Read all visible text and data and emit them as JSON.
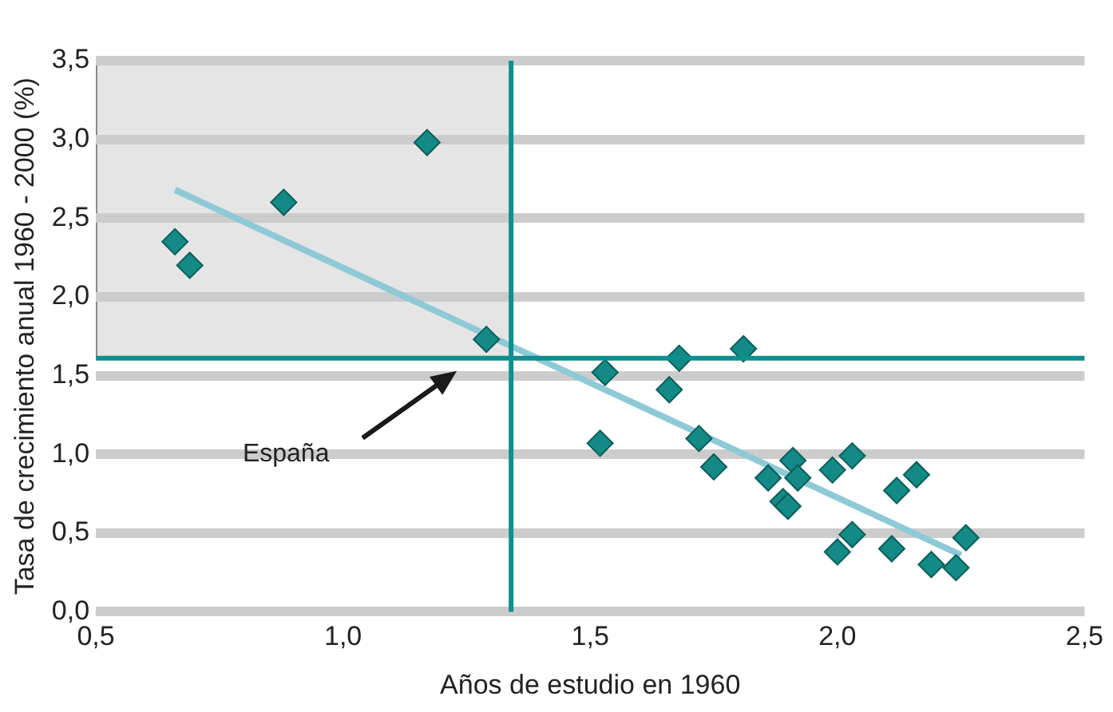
{
  "chart_data": {
    "type": "scatter",
    "xlabel": "Años de estudio en 1960",
    "ylabel": "Tasa de crecimiento anual 1960 - 2000 (%)",
    "xlim": [
      0.5,
      2.5
    ],
    "ylim": [
      0,
      3.5
    ],
    "xticks": [
      {
        "value": 0.5,
        "label": "0,5"
      },
      {
        "value": 1.0,
        "label": "1,0"
      },
      {
        "value": 1.5,
        "label": "1,5"
      },
      {
        "value": 2.0,
        "label": "2,0"
      },
      {
        "value": 2.5,
        "label": "2,5"
      }
    ],
    "yticks": [
      {
        "value": 0,
        "label": "0,0"
      },
      {
        "value": 0.5,
        "label": "0,5"
      },
      {
        "value": 1.0,
        "label": "1,0"
      },
      {
        "value": 1.5,
        "label": "1,5"
      },
      {
        "value": 2.0,
        "label": "2,0"
      },
      {
        "value": 2.5,
        "label": "2,5"
      },
      {
        "value": 3.0,
        "label": "3,0"
      },
      {
        "value": 3.5,
        "label": "3,5"
      }
    ],
    "grid": "y",
    "legend": false,
    "marker": "diamond",
    "series": [
      {
        "type": "scatter",
        "color": "#138a85",
        "x": [
          0.66,
          0.69,
          0.88,
          1.17,
          1.29,
          1.53,
          1.52,
          1.68,
          1.66,
          1.81,
          1.72,
          1.75,
          1.86,
          1.91,
          1.92,
          1.89,
          1.9,
          1.99,
          2.03,
          2.12,
          2.16,
          2.03,
          2.0,
          2.11,
          2.19,
          2.26,
          2.24
        ],
        "values": [
          2.35,
          2.2,
          2.6,
          2.98,
          1.73,
          1.52,
          1.07,
          1.61,
          1.41,
          1.67,
          1.1,
          0.92,
          0.85,
          0.96,
          0.85,
          0.7,
          0.67,
          0.9,
          0.99,
          0.77,
          0.87,
          0.49,
          0.38,
          0.4,
          0.3,
          0.47,
          0.28
        ]
      },
      {
        "type": "line",
        "color": "#8ecad6",
        "marker": "none",
        "x": [
          0.66,
          2.25
        ],
        "values": [
          2.68,
          0.36
        ]
      }
    ],
    "ref_lines": [
      {
        "axis": "x",
        "value": 1.34,
        "color": "#0e8f8f"
      },
      {
        "axis": "y",
        "value": 1.61,
        "color": "#0e8f8f"
      }
    ],
    "annotations": [
      "España"
    ]
  }
}
